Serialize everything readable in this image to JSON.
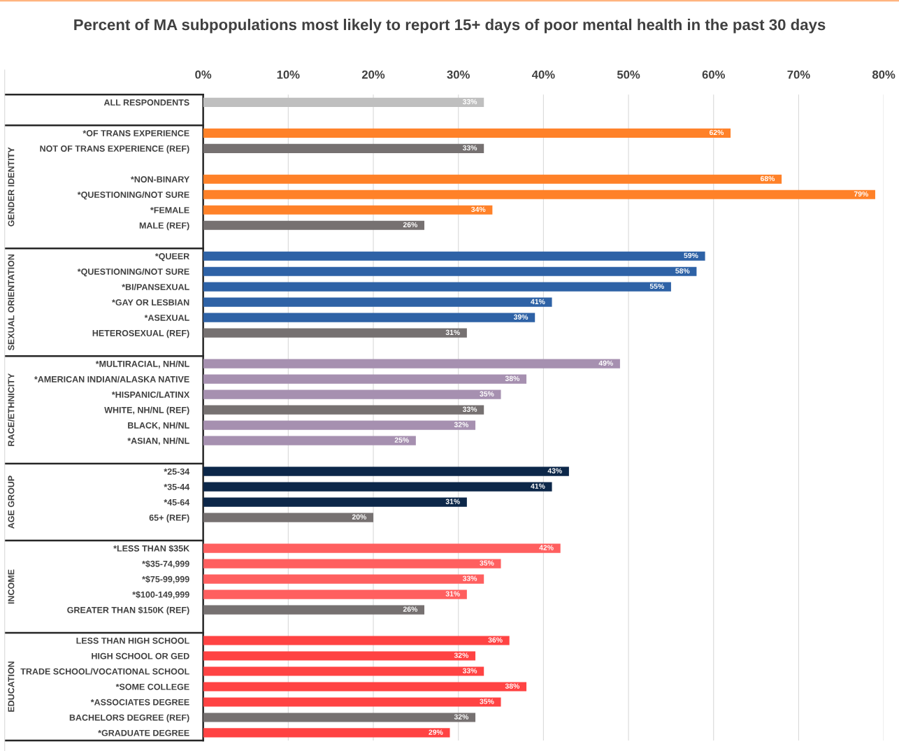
{
  "chart_data": {
    "type": "bar",
    "orientation": "horizontal",
    "title": "Percent of MA subpopulations most likely to report 15+ days of poor mental health in the past 30 days",
    "categories": [
      "ALL RESPONDENTS",
      null,
      "*OF TRANS EXPERIENCE",
      "NOT OF TRANS EXPERIENCE (REF)",
      null,
      "*NON-BINARY",
      "*QUESTIONING/NOT SURE",
      "*FEMALE",
      "MALE (REF)",
      null,
      "*QUEER",
      "*QUESTIONING/NOT SURE",
      "*BI/PANSEXUAL",
      "*GAY OR LESBIAN",
      "*ASEXUAL",
      "HETEROSEXUAL (REF)",
      null,
      "*MULTIRACIAL, NH/NL",
      "*AMERICAN INDIAN/ALASKA NATIVE",
      "*HISPANIC/LATINX",
      "WHITE, NH/NL (REF)",
      "BLACK, NH/NL",
      "*ASIAN, NH/NL",
      null,
      "*25-34",
      "*35-44",
      "*45-64",
      "65+ (REF)",
      null,
      "*LESS THAN $35K",
      "*$35-74,999",
      "*$75-99,999",
      "*$100-149,999",
      "GREATER THAN $150K (REF)",
      null,
      "LESS THAN HIGH SCHOOL",
      "HIGH SCHOOL OR GED",
      "TRADE SCHOOL/VOCATIONAL SCHOOL",
      "*SOME COLLEGE",
      "*ASSOCIATES DEGREE",
      "BACHELORS DEGREE (REF)",
      "*GRADUATE DEGREE"
    ],
    "values": [
      33,
      null,
      62,
      33,
      null,
      68,
      79,
      34,
      26,
      null,
      59,
      58,
      55,
      41,
      39,
      31,
      null,
      49,
      38,
      35,
      33,
      32,
      25,
      null,
      43,
      41,
      31,
      20,
      null,
      42,
      35,
      33,
      31,
      26,
      null,
      36,
      32,
      33,
      38,
      35,
      32,
      29
    ],
    "value_labels": [
      "33%",
      null,
      "62%",
      "33%",
      null,
      "68%",
      "79%",
      "34%",
      "26%",
      null,
      "59%",
      "58%",
      "55%",
      "41%",
      "39%",
      "31%",
      null,
      "49%",
      "38%",
      "35%",
      "33%",
      "32%",
      "25%",
      null,
      "43%",
      "41%",
      "31%",
      "20%",
      null,
      "42%",
      "35%",
      "33%",
      "31%",
      "26%",
      null,
      "36%",
      "32%",
      "33%",
      "38%",
      "35%",
      "32%",
      "29%"
    ],
    "colors": [
      "#bfbfbf",
      null,
      "#ff8128",
      "#767171",
      null,
      "#ff8128",
      "#ff8128",
      "#ff8128",
      "#767171",
      null,
      "#2e62a6",
      "#2e62a6",
      "#2e62a6",
      "#2e62a6",
      "#2e62a6",
      "#767171",
      null,
      "#a690b0",
      "#a690b0",
      "#a690b0",
      "#767171",
      "#a690b0",
      "#a690b0",
      null,
      "#0c2749",
      "#0c2749",
      "#0c2749",
      "#767171",
      null,
      "#ff5f5f",
      "#ff5f5f",
      "#ff5f5f",
      "#ff5f5f",
      "#767171",
      null,
      "#ff4343",
      "#ff4343",
      "#ff4343",
      "#ff4343",
      "#ff4343",
      "#767171",
      "#ff4343"
    ],
    "xlim": [
      0,
      80
    ],
    "xticks": [
      {
        "value": 0,
        "label": "0%"
      },
      {
        "value": 10,
        "label": "10%"
      },
      {
        "value": 20,
        "label": "20%"
      },
      {
        "value": 30,
        "label": "30%"
      },
      {
        "value": 40,
        "label": "40%"
      },
      {
        "value": 50,
        "label": "50%"
      },
      {
        "value": 60,
        "label": "60%"
      },
      {
        "value": 70,
        "label": "70%"
      },
      {
        "value": 80,
        "label": "80%"
      }
    ],
    "grid": "x",
    "annotations": [
      "GENDER IDENTITY",
      "SEXUAL ORIENTATION",
      "RACE/ETHNICITY",
      "AGE GROUP",
      "INCOME",
      "EDUCATION"
    ]
  }
}
